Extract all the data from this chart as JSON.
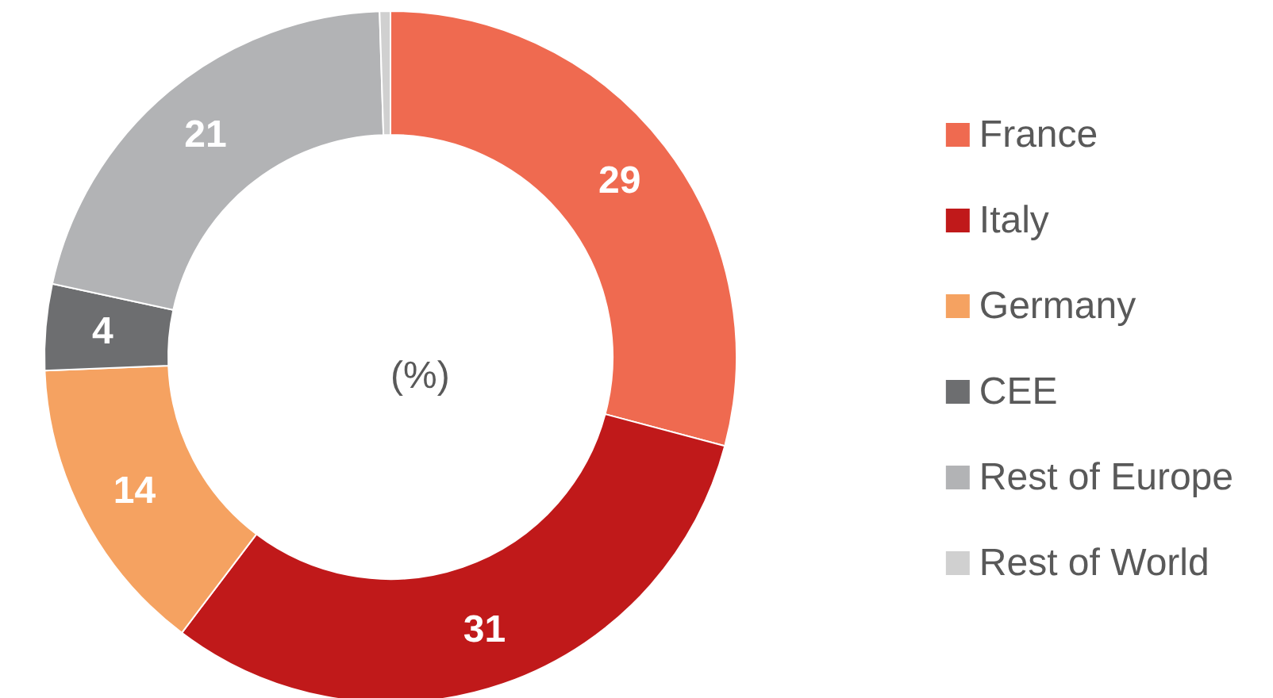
{
  "chart_data": {
    "type": "donut",
    "categories": [
      "France",
      "Italy",
      "Germany",
      "CEE",
      "Rest of Europe",
      "Rest of World"
    ],
    "values": [
      29,
      31,
      14,
      4,
      21,
      0.5
    ],
    "colors": [
      "#ef6a50",
      "#c0191a",
      "#f5a261",
      "#6d6e70",
      "#b2b3b5",
      "#d0d0d0"
    ],
    "value_labels": [
      "29",
      "31",
      "14",
      "4",
      "21",
      null
    ],
    "annotations": [
      "(%)"
    ],
    "legend": "right"
  }
}
